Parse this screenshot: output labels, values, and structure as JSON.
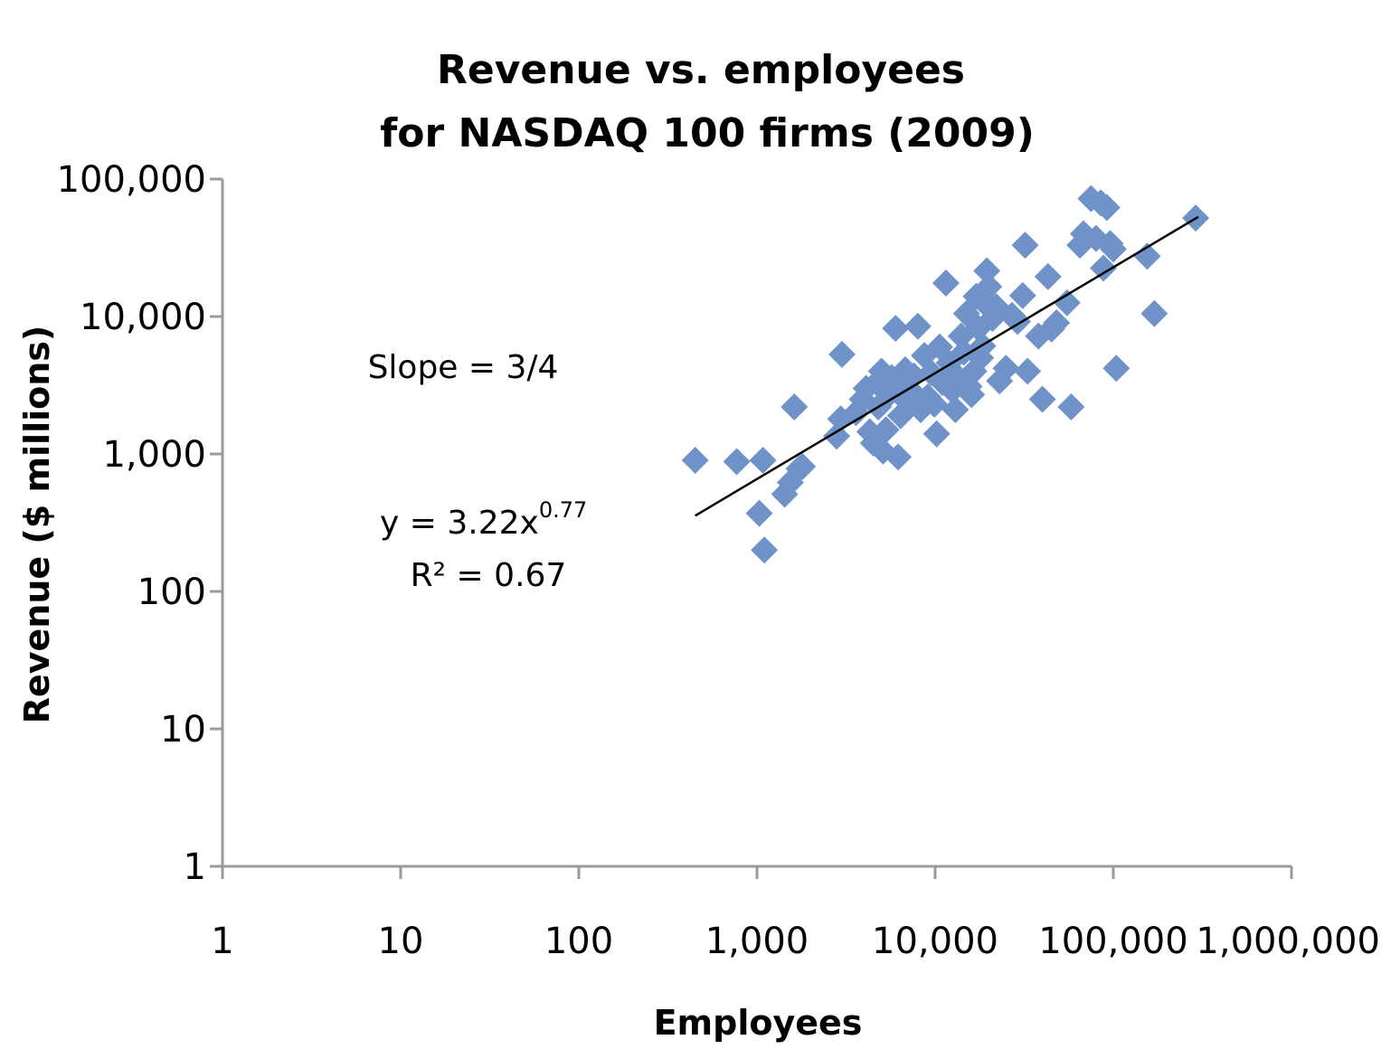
{
  "chart_data": {
    "type": "scatter",
    "title": [
      "Revenue vs. employees",
      "for NASDAQ 100 firms (2009)"
    ],
    "xlabel": "Employees",
    "ylabel": "Revenue ($ millions)",
    "xscale": "log",
    "yscale": "log",
    "xlim": [
      1,
      1000000
    ],
    "ylim": [
      1,
      100000
    ],
    "x_ticks": [
      1,
      10,
      100,
      1000,
      10000,
      100000,
      1000000
    ],
    "x_tick_labels": [
      "1",
      "10",
      "100",
      "1,000",
      "10,000",
      "100,000",
      "1,000,000"
    ],
    "y_ticks": [
      1,
      10,
      100,
      1000,
      10000,
      100000
    ],
    "y_tick_labels": [
      "1",
      "10",
      "100",
      "1,000",
      "10,000",
      "100,000"
    ],
    "grid": false,
    "marker": "diamond",
    "colors": {
      "points": "#6f93c8",
      "trendline": "#000000",
      "axis": "#9a9a9a"
    },
    "series": [
      {
        "points": [
          [
            450,
            900
          ],
          [
            770,
            880
          ],
          [
            1080,
            900
          ],
          [
            1030,
            370
          ],
          [
            1100,
            200
          ],
          [
            1430,
            510
          ],
          [
            1540,
            620
          ],
          [
            1620,
            2200
          ],
          [
            1720,
            780
          ],
          [
            1800,
            810
          ],
          [
            2800,
            1350
          ],
          [
            2950,
            1800
          ],
          [
            3000,
            5300
          ],
          [
            3600,
            2000
          ],
          [
            3900,
            2500
          ],
          [
            4100,
            3000
          ],
          [
            4300,
            1450
          ],
          [
            4500,
            1200
          ],
          [
            4700,
            3300
          ],
          [
            4800,
            2200
          ],
          [
            5000,
            4000
          ],
          [
            5100,
            1050
          ],
          [
            5300,
            1500
          ],
          [
            5500,
            2700
          ],
          [
            5700,
            3600
          ],
          [
            6000,
            8200
          ],
          [
            6200,
            950
          ],
          [
            6400,
            1900
          ],
          [
            6600,
            3200
          ],
          [
            6800,
            4100
          ],
          [
            7000,
            2400
          ],
          [
            7300,
            2900
          ],
          [
            7600,
            3700
          ],
          [
            8000,
            8500
          ],
          [
            8300,
            2100
          ],
          [
            8700,
            5200
          ],
          [
            9100,
            2600
          ],
          [
            9500,
            3900
          ],
          [
            9900,
            2300
          ],
          [
            10200,
            1400
          ],
          [
            10600,
            6000
          ],
          [
            11000,
            3300
          ],
          [
            11500,
            17500
          ],
          [
            12000,
            4600
          ],
          [
            12500,
            2900
          ],
          [
            13000,
            2100
          ],
          [
            13500,
            3600
          ],
          [
            14000,
            7200
          ],
          [
            14500,
            5500
          ],
          [
            15000,
            10500
          ],
          [
            15500,
            3100
          ],
          [
            16000,
            2700
          ],
          [
            16500,
            4000
          ],
          [
            17000,
            14000
          ],
          [
            17500,
            8200
          ],
          [
            18000,
            5000
          ],
          [
            18500,
            6100
          ],
          [
            19000,
            12500
          ],
          [
            19500,
            21500
          ],
          [
            20000,
            16500
          ],
          [
            21000,
            9700
          ],
          [
            22000,
            11800
          ],
          [
            23000,
            3400
          ],
          [
            25000,
            4200
          ],
          [
            27000,
            10200
          ],
          [
            29000,
            9200
          ],
          [
            31000,
            14200
          ],
          [
            32000,
            33000
          ],
          [
            33000,
            4000
          ],
          [
            38000,
            7200
          ],
          [
            40000,
            2500
          ],
          [
            43000,
            19500
          ],
          [
            45000,
            8100
          ],
          [
            48000,
            9000
          ],
          [
            55000,
            12600
          ],
          [
            58000,
            2200
          ],
          [
            65000,
            33000
          ],
          [
            68000,
            40000
          ],
          [
            75000,
            72000
          ],
          [
            80000,
            37000
          ],
          [
            85000,
            67000
          ],
          [
            88000,
            22500
          ],
          [
            92000,
            62000
          ],
          [
            96000,
            34000
          ],
          [
            100000,
            31000
          ],
          [
            104000,
            4200
          ],
          [
            155000,
            27500
          ],
          [
            170000,
            10500
          ],
          [
            290000,
            52000
          ]
        ]
      }
    ],
    "trendline": {
      "type": "power",
      "coef": 3.22,
      "exponent": 0.77,
      "x_range": [
        450,
        300000
      ]
    },
    "annotations": {
      "slope": "Slope = 3/4",
      "equation_base": "y = 3.22x",
      "equation_exp": "0.77",
      "r_squared": "R² = 0.67"
    }
  }
}
